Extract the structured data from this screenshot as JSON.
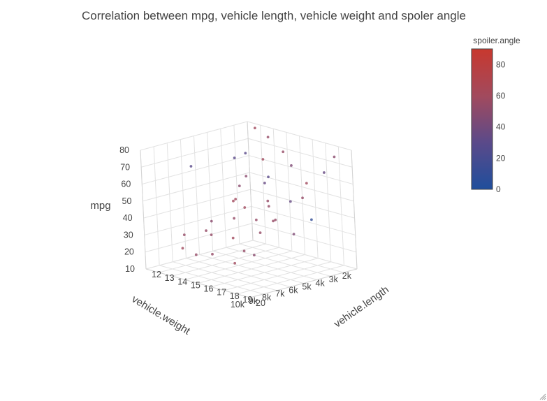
{
  "chart_data": {
    "type": "scatter3d",
    "title": "Correlation between mpg, vehicle length, vehicle weight and spoler angle",
    "axes": {
      "x": {
        "label": "vehicle.weight",
        "range": [
          2000,
          10000
        ],
        "ticks": [
          2000,
          3000,
          4000,
          5000,
          6000,
          7000,
          8000,
          9000,
          10000
        ],
        "tick_labels": [
          "2k",
          "3k",
          "4k",
          "5k",
          "6k",
          "7k",
          "8k",
          "9k",
          "10k"
        ]
      },
      "y": {
        "label": "vehicle.length",
        "range": [
          12,
          20
        ],
        "ticks": [
          12,
          13,
          14,
          15,
          16,
          17,
          18,
          19,
          20
        ],
        "tick_labels": [
          "12",
          "13",
          "14",
          "15",
          "16",
          "17",
          "18",
          "19",
          "20"
        ]
      },
      "z": {
        "label": "mpg",
        "range": [
          10,
          80
        ],
        "ticks": [
          10,
          20,
          30,
          40,
          50,
          60,
          70,
          80
        ],
        "tick_labels": [
          "10",
          "20",
          "30",
          "40",
          "50",
          "60",
          "70",
          "80"
        ]
      }
    },
    "colorbar": {
      "title": "spoiler.angle",
      "range": [
        0,
        90
      ],
      "ticks": [
        0,
        20,
        40,
        60,
        80
      ],
      "colors": [
        "#1f4e9c",
        "#5a4a8a",
        "#a14a5e",
        "#c8382e"
      ]
    },
    "grid": true,
    "legend": "none",
    "points": [
      {
        "weight": 2600,
        "length": 13.2,
        "mpg": 80,
        "angle": 60
      },
      {
        "weight": 2900,
        "length": 14.5,
        "mpg": 78,
        "angle": 55
      },
      {
        "weight": 3200,
        "length": 13.0,
        "mpg": 66,
        "angle": 30
      },
      {
        "weight": 2500,
        "length": 15.2,
        "mpg": 70,
        "angle": 55
      },
      {
        "weight": 2700,
        "length": 16.0,
        "mpg": 64,
        "angle": 45
      },
      {
        "weight": 3300,
        "length": 14.8,
        "mpg": 56,
        "angle": 30
      },
      {
        "weight": 3800,
        "length": 13.6,
        "mpg": 55,
        "angle": 50
      },
      {
        "weight": 4300,
        "length": 15.5,
        "mpg": 70,
        "angle": 60
      },
      {
        "weight": 4700,
        "length": 14.0,
        "mpg": 52,
        "angle": 50
      },
      {
        "weight": 3900,
        "length": 12.8,
        "mpg": 40,
        "angle": 60
      },
      {
        "weight": 5200,
        "length": 16.5,
        "mpg": 60,
        "angle": 35
      },
      {
        "weight": 4500,
        "length": 13.5,
        "mpg": 67,
        "angle": 30
      },
      {
        "weight": 5700,
        "length": 17.2,
        "mpg": 52,
        "angle": 55
      },
      {
        "weight": 6400,
        "length": 18.0,
        "mpg": 52,
        "angle": 55
      },
      {
        "weight": 6100,
        "length": 15.8,
        "mpg": 46,
        "angle": 60
      },
      {
        "weight": 6900,
        "length": 17.5,
        "mpg": 44,
        "angle": 55
      },
      {
        "weight": 5400,
        "length": 14.2,
        "mpg": 45,
        "angle": 60
      },
      {
        "weight": 7300,
        "length": 16.2,
        "mpg": 43,
        "angle": 55
      },
      {
        "weight": 7600,
        "length": 18.5,
        "mpg": 40,
        "angle": 55
      },
      {
        "weight": 8200,
        "length": 17.0,
        "mpg": 35,
        "angle": 60
      },
      {
        "weight": 6700,
        "length": 13.8,
        "mpg": 35,
        "angle": 50
      },
      {
        "weight": 7900,
        "length": 15.0,
        "mpg": 32,
        "angle": 55
      },
      {
        "weight": 8600,
        "length": 19.0,
        "mpg": 30,
        "angle": 50
      },
      {
        "weight": 9300,
        "length": 18.2,
        "mpg": 25,
        "angle": 60
      },
      {
        "weight": 5900,
        "length": 12.5,
        "mpg": 25,
        "angle": 55
      },
      {
        "weight": 8900,
        "length": 14.8,
        "mpg": 22,
        "angle": 55
      },
      {
        "weight": 6300,
        "length": 19.6,
        "mpg": 58,
        "angle": 35
      },
      {
        "weight": 7100,
        "length": 19.2,
        "mpg": 48,
        "angle": 55
      },
      {
        "weight": 4100,
        "length": 18.6,
        "mpg": 62,
        "angle": 60
      },
      {
        "weight": 3500,
        "length": 17.6,
        "mpg": 50,
        "angle": 55
      },
      {
        "weight": 5000,
        "length": 19.8,
        "mpg": 45,
        "angle": 10
      },
      {
        "weight": 8000,
        "length": 13.0,
        "mpg": 28,
        "angle": 55
      },
      {
        "weight": 2200,
        "length": 18.0,
        "mpg": 63,
        "angle": 35
      },
      {
        "weight": 9600,
        "length": 16.8,
        "mpg": 28,
        "angle": 55
      },
      {
        "weight": 4800,
        "length": 16.6,
        "mpg": 37,
        "angle": 55
      },
      {
        "weight": 5600,
        "length": 19.0,
        "mpg": 36,
        "angle": 45
      },
      {
        "weight": 9800,
        "length": 19.5,
        "mpg": 36,
        "angle": 55
      },
      {
        "weight": 7600,
        "length": 12.4,
        "mpg": 18,
        "angle": 60
      },
      {
        "weight": 3100,
        "length": 19.8,
        "mpg": 78,
        "angle": 50
      },
      {
        "weight": 6600,
        "length": 12.3,
        "mpg": 64,
        "angle": 30
      }
    ]
  }
}
